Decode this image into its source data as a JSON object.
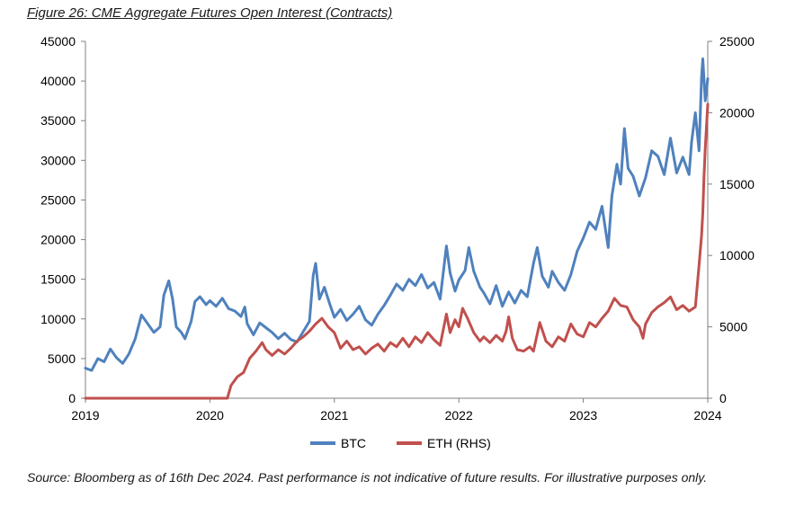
{
  "chart_data": {
    "type": "line",
    "title": "Figure 26: CME Aggregate Futures Open Interest (Contracts)",
    "source": "Source: Bloomberg as of 16th Dec 2024. Past performance is not indicative of future results. For illustrative purposes only.",
    "x_axis": {
      "range": [
        2019,
        2024
      ],
      "ticks": [
        "2019",
        "2020",
        "2021",
        "2022",
        "2023",
        "2024"
      ]
    },
    "y_axis_left": {
      "range": [
        0,
        45000
      ],
      "ticks": [
        "0",
        "5000",
        "10000",
        "15000",
        "20000",
        "25000",
        "30000",
        "35000",
        "40000",
        "45000"
      ]
    },
    "y_axis_right": {
      "range": [
        0,
        25000
      ],
      "ticks": [
        "0",
        "5000",
        "10000",
        "15000",
        "20000",
        "25000"
      ]
    },
    "grid": false,
    "legend": {
      "position": "bottom"
    },
    "series": [
      {
        "name": "BTC",
        "axis": "left",
        "color": "#4F81BD",
        "points": [
          [
            2019.0,
            3800
          ],
          [
            2019.05,
            3500
          ],
          [
            2019.1,
            5000
          ],
          [
            2019.15,
            4600
          ],
          [
            2019.2,
            6200
          ],
          [
            2019.25,
            5100
          ],
          [
            2019.3,
            4400
          ],
          [
            2019.35,
            5600
          ],
          [
            2019.4,
            7500
          ],
          [
            2019.45,
            10500
          ],
          [
            2019.5,
            9400
          ],
          [
            2019.55,
            8300
          ],
          [
            2019.6,
            9000
          ],
          [
            2019.63,
            13000
          ],
          [
            2019.67,
            14800
          ],
          [
            2019.7,
            12500
          ],
          [
            2019.73,
            9000
          ],
          [
            2019.77,
            8300
          ],
          [
            2019.8,
            7500
          ],
          [
            2019.85,
            9700
          ],
          [
            2019.88,
            12200
          ],
          [
            2019.92,
            12800
          ],
          [
            2019.97,
            11800
          ],
          [
            2020.0,
            12300
          ],
          [
            2020.05,
            11600
          ],
          [
            2020.1,
            12600
          ],
          [
            2020.15,
            11300
          ],
          [
            2020.2,
            11000
          ],
          [
            2020.25,
            10300
          ],
          [
            2020.28,
            11500
          ],
          [
            2020.3,
            9400
          ],
          [
            2020.35,
            8000
          ],
          [
            2020.4,
            9500
          ],
          [
            2020.45,
            8900
          ],
          [
            2020.5,
            8300
          ],
          [
            2020.55,
            7500
          ],
          [
            2020.6,
            8200
          ],
          [
            2020.65,
            7400
          ],
          [
            2020.7,
            7100
          ],
          [
            2020.75,
            8400
          ],
          [
            2020.8,
            9700
          ],
          [
            2020.83,
            15500
          ],
          [
            2020.85,
            17000
          ],
          [
            2020.88,
            12500
          ],
          [
            2020.92,
            14000
          ],
          [
            2020.96,
            12000
          ],
          [
            2021.0,
            10200
          ],
          [
            2021.05,
            11200
          ],
          [
            2021.1,
            9800
          ],
          [
            2021.15,
            10600
          ],
          [
            2021.2,
            11600
          ],
          [
            2021.25,
            9900
          ],
          [
            2021.3,
            9200
          ],
          [
            2021.35,
            10600
          ],
          [
            2021.4,
            11700
          ],
          [
            2021.45,
            13000
          ],
          [
            2021.5,
            14400
          ],
          [
            2021.55,
            13600
          ],
          [
            2021.6,
            15000
          ],
          [
            2021.65,
            14200
          ],
          [
            2021.7,
            15600
          ],
          [
            2021.75,
            13900
          ],
          [
            2021.8,
            14600
          ],
          [
            2021.85,
            12500
          ],
          [
            2021.88,
            16500
          ],
          [
            2021.9,
            19200
          ],
          [
            2021.93,
            15800
          ],
          [
            2021.97,
            13500
          ],
          [
            2022.0,
            14900
          ],
          [
            2022.05,
            16100
          ],
          [
            2022.08,
            19000
          ],
          [
            2022.12,
            16000
          ],
          [
            2022.17,
            14000
          ],
          [
            2022.2,
            13300
          ],
          [
            2022.25,
            11900
          ],
          [
            2022.3,
            14200
          ],
          [
            2022.35,
            11600
          ],
          [
            2022.4,
            13400
          ],
          [
            2022.45,
            12000
          ],
          [
            2022.5,
            13600
          ],
          [
            2022.55,
            12800
          ],
          [
            2022.6,
            17000
          ],
          [
            2022.63,
            19000
          ],
          [
            2022.67,
            15400
          ],
          [
            2022.72,
            14000
          ],
          [
            2022.75,
            16000
          ],
          [
            2022.8,
            14600
          ],
          [
            2022.85,
            13600
          ],
          [
            2022.9,
            15600
          ],
          [
            2022.95,
            18500
          ],
          [
            2023.0,
            20200
          ],
          [
            2023.05,
            22200
          ],
          [
            2023.1,
            21300
          ],
          [
            2023.15,
            24200
          ],
          [
            2023.2,
            19000
          ],
          [
            2023.23,
            25500
          ],
          [
            2023.27,
            29500
          ],
          [
            2023.3,
            27000
          ],
          [
            2023.33,
            34000
          ],
          [
            2023.36,
            29000
          ],
          [
            2023.4,
            28000
          ],
          [
            2023.45,
            25500
          ],
          [
            2023.5,
            27800
          ],
          [
            2023.55,
            31200
          ],
          [
            2023.6,
            30500
          ],
          [
            2023.65,
            28200
          ],
          [
            2023.7,
            32800
          ],
          [
            2023.75,
            28400
          ],
          [
            2023.8,
            30400
          ],
          [
            2023.85,
            28200
          ],
          [
            2023.87,
            32300
          ],
          [
            2023.9,
            36000
          ],
          [
            2023.93,
            31200
          ],
          [
            2023.95,
            40500
          ],
          [
            2023.96,
            42800
          ],
          [
            2023.98,
            37500
          ],
          [
            2024.0,
            40300
          ]
        ]
      },
      {
        "name": "ETH (RHS)",
        "axis": "right",
        "color": "#C0504D",
        "points": [
          [
            2019.0,
            0
          ],
          [
            2020.14,
            0
          ],
          [
            2020.17,
            900
          ],
          [
            2020.22,
            1500
          ],
          [
            2020.27,
            1800
          ],
          [
            2020.32,
            2800
          ],
          [
            2020.37,
            3300
          ],
          [
            2020.42,
            3900
          ],
          [
            2020.45,
            3400
          ],
          [
            2020.5,
            3000
          ],
          [
            2020.55,
            3400
          ],
          [
            2020.6,
            3100
          ],
          [
            2020.65,
            3500
          ],
          [
            2020.7,
            4000
          ],
          [
            2020.75,
            4300
          ],
          [
            2020.8,
            4700
          ],
          [
            2020.85,
            5200
          ],
          [
            2020.9,
            5600
          ],
          [
            2020.95,
            5000
          ],
          [
            2021.0,
            4600
          ],
          [
            2021.05,
            3500
          ],
          [
            2021.1,
            4000
          ],
          [
            2021.15,
            3400
          ],
          [
            2021.2,
            3600
          ],
          [
            2021.25,
            3100
          ],
          [
            2021.3,
            3500
          ],
          [
            2021.35,
            3800
          ],
          [
            2021.4,
            3300
          ],
          [
            2021.45,
            3900
          ],
          [
            2021.5,
            3600
          ],
          [
            2021.55,
            4200
          ],
          [
            2021.6,
            3600
          ],
          [
            2021.65,
            4300
          ],
          [
            2021.7,
            3900
          ],
          [
            2021.75,
            4600
          ],
          [
            2021.8,
            4100
          ],
          [
            2021.85,
            3700
          ],
          [
            2021.9,
            5900
          ],
          [
            2021.93,
            4600
          ],
          [
            2021.97,
            5500
          ],
          [
            2022.0,
            5000
          ],
          [
            2022.03,
            6300
          ],
          [
            2022.07,
            5600
          ],
          [
            2022.12,
            4600
          ],
          [
            2022.17,
            4000
          ],
          [
            2022.2,
            4300
          ],
          [
            2022.25,
            3900
          ],
          [
            2022.3,
            4400
          ],
          [
            2022.35,
            4000
          ],
          [
            2022.38,
            4700
          ],
          [
            2022.4,
            5700
          ],
          [
            2022.43,
            4200
          ],
          [
            2022.47,
            3400
          ],
          [
            2022.52,
            3300
          ],
          [
            2022.57,
            3600
          ],
          [
            2022.6,
            3300
          ],
          [
            2022.65,
            5300
          ],
          [
            2022.7,
            4000
          ],
          [
            2022.75,
            3600
          ],
          [
            2022.8,
            4300
          ],
          [
            2022.85,
            4000
          ],
          [
            2022.9,
            5200
          ],
          [
            2022.95,
            4500
          ],
          [
            2023.0,
            4300
          ],
          [
            2023.05,
            5300
          ],
          [
            2023.1,
            5000
          ],
          [
            2023.15,
            5600
          ],
          [
            2023.2,
            6100
          ],
          [
            2023.25,
            7000
          ],
          [
            2023.3,
            6500
          ],
          [
            2023.35,
            6400
          ],
          [
            2023.4,
            5500
          ],
          [
            2023.45,
            5000
          ],
          [
            2023.48,
            4200
          ],
          [
            2023.5,
            5200
          ],
          [
            2023.55,
            6000
          ],
          [
            2023.6,
            6400
          ],
          [
            2023.65,
            6700
          ],
          [
            2023.7,
            7100
          ],
          [
            2023.75,
            6200
          ],
          [
            2023.8,
            6500
          ],
          [
            2023.85,
            6100
          ],
          [
            2023.9,
            6400
          ],
          [
            2023.93,
            9300
          ],
          [
            2023.95,
            11400
          ],
          [
            2023.96,
            13000
          ],
          [
            2023.97,
            15500
          ],
          [
            2023.98,
            17500
          ],
          [
            2024.0,
            20600
          ]
        ]
      }
    ]
  }
}
